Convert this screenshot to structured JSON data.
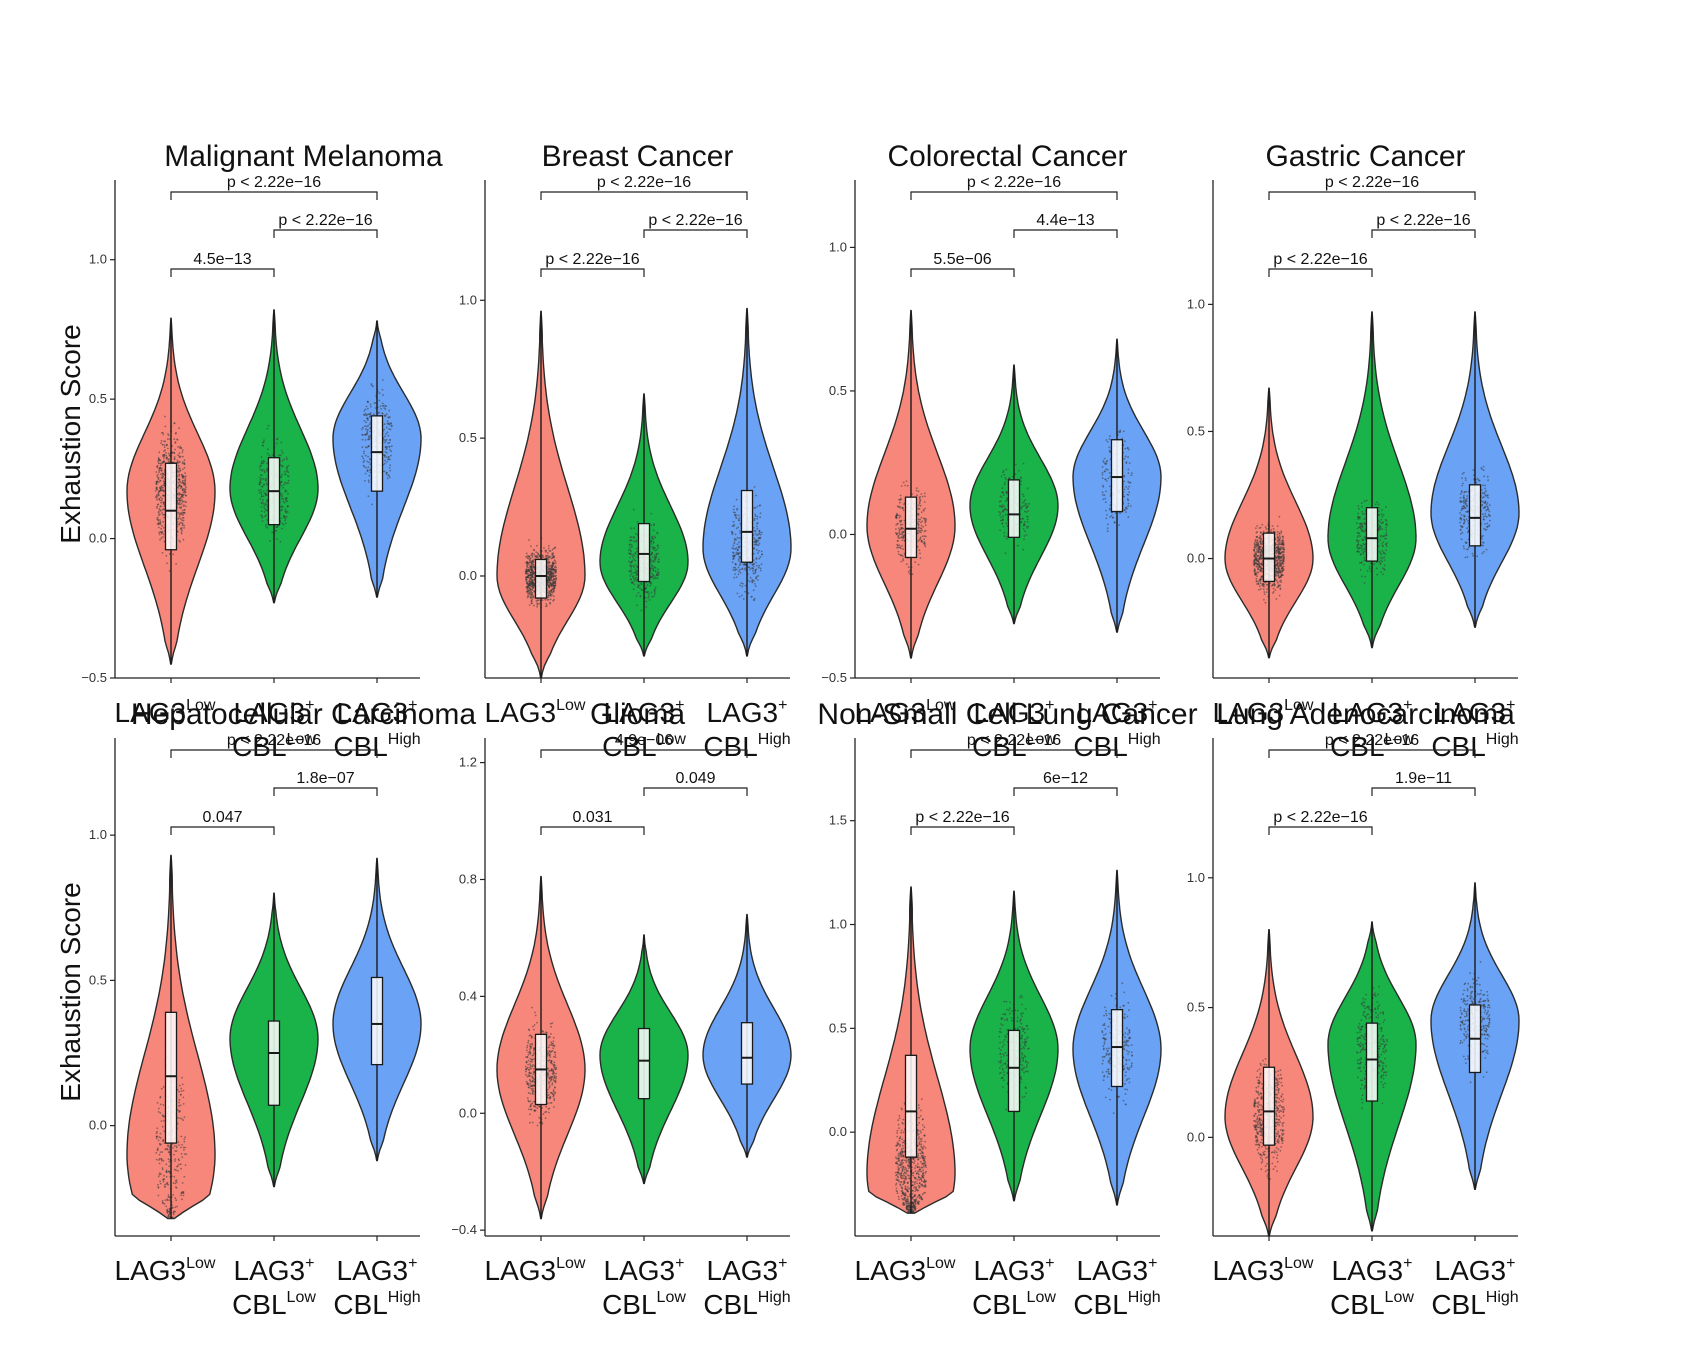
{
  "figure": {
    "ylabel": "Exhaustion Score",
    "groups": [
      {
        "line1": "LAG3",
        "sup1": "Low",
        "line2": "",
        "sup2": ""
      },
      {
        "line1": "LAG3",
        "sup1": "+",
        "line2": "CBL",
        "sup2": "Low"
      },
      {
        "line1": "LAG3",
        "sup1": "+",
        "line2": "CBL",
        "sup2": "High"
      }
    ],
    "colors": {
      "LAG3_low": "#F8877B",
      "CBL_low": "#19B34A",
      "CBL_high": "#6AA2F5"
    }
  },
  "chart_data": [
    {
      "type": "violin",
      "title": "Malignant Melanoma",
      "ylabel": "Exhaustion Score",
      "ylim": [
        -0.5,
        1.25
      ],
      "ticks": [
        -0.5,
        0.0,
        0.5,
        1.0
      ],
      "tick_labels": [
        "−0.5",
        "0.0",
        "0.5",
        "1.0"
      ],
      "categories": [
        "LAG3 Low",
        "LAG3+ CBL Low",
        "LAG3+ CBL High"
      ],
      "series": [
        {
          "name": "LAG3 Low",
          "min": -0.45,
          "q1": -0.04,
          "median": 0.1,
          "q3": 0.27,
          "max": 0.79,
          "mode": 0.17,
          "n": 650
        },
        {
          "name": "LAG3+ CBL Low",
          "min": -0.23,
          "q1": 0.05,
          "median": 0.17,
          "q3": 0.29,
          "max": 0.82,
          "mode": 0.18,
          "n": 300
        },
        {
          "name": "LAG3+ CBL High",
          "min": -0.21,
          "q1": 0.17,
          "median": 0.31,
          "q3": 0.44,
          "max": 0.78,
          "mode": 0.36,
          "n": 280
        }
      ],
      "comparisons": [
        {
          "pair": [
            0,
            1
          ],
          "label": "4.5e−13"
        },
        {
          "pair": [
            1,
            2
          ],
          "label": "p < 2.22e−16"
        },
        {
          "pair": [
            0,
            2
          ],
          "label": "p < 2.22e−16"
        }
      ]
    },
    {
      "type": "violin",
      "title": "Breast Cancer",
      "ylabel": "",
      "ylim": [
        -0.37,
        1.4
      ],
      "ticks": [
        0.0,
        0.5,
        1.0
      ],
      "tick_labels": [
        "0.0",
        "0.5",
        "1.0"
      ],
      "categories": [
        "LAG3 Low",
        "LAG3+ CBL Low",
        "LAG3+ CBL High"
      ],
      "series": [
        {
          "name": "LAG3 Low",
          "min": -0.37,
          "q1": -0.08,
          "median": 0.0,
          "q3": 0.06,
          "max": 0.96,
          "mode": 0.0,
          "n": 900
        },
        {
          "name": "LAG3+ CBL Low",
          "min": -0.29,
          "q1": -0.02,
          "median": 0.08,
          "q3": 0.19,
          "max": 0.66,
          "mode": 0.05,
          "n": 350
        },
        {
          "name": "LAG3+ CBL High",
          "min": -0.29,
          "q1": 0.05,
          "median": 0.16,
          "q3": 0.31,
          "max": 0.97,
          "mode": 0.1,
          "n": 320
        }
      ],
      "comparisons": [
        {
          "pair": [
            0,
            1
          ],
          "label": "p < 2.22e−16"
        },
        {
          "pair": [
            1,
            2
          ],
          "label": "p < 2.22e−16"
        },
        {
          "pair": [
            0,
            2
          ],
          "label": "p < 2.22e−16"
        }
      ]
    },
    {
      "type": "violin",
      "title": "Colorectal Cancer",
      "ylabel": "",
      "ylim": [
        -0.5,
        1.2
      ],
      "ticks": [
        -0.5,
        0.0,
        0.5,
        1.0
      ],
      "tick_labels": [
        "−0.5",
        "0.0",
        "0.5",
        "1.0"
      ],
      "categories": [
        "LAG3 Low",
        "LAG3+ CBL Low",
        "LAG3+ CBL High"
      ],
      "series": [
        {
          "name": "LAG3 Low",
          "min": -0.43,
          "q1": -0.08,
          "median": 0.02,
          "q3": 0.13,
          "max": 0.78,
          "mode": 0.03,
          "n": 320
        },
        {
          "name": "LAG3+ CBL Low",
          "min": -0.31,
          "q1": -0.01,
          "median": 0.07,
          "q3": 0.19,
          "max": 0.59,
          "mode": 0.1,
          "n": 200
        },
        {
          "name": "LAG3+ CBL High",
          "min": -0.34,
          "q1": 0.08,
          "median": 0.2,
          "q3": 0.33,
          "max": 0.68,
          "mode": 0.2,
          "n": 180
        }
      ],
      "comparisons": [
        {
          "pair": [
            0,
            1
          ],
          "label": "5.5e−06"
        },
        {
          "pair": [
            1,
            2
          ],
          "label": "4.4e−13"
        },
        {
          "pair": [
            0,
            2
          ],
          "label": "p < 2.22e−16"
        }
      ]
    },
    {
      "type": "violin",
      "title": "Gastric Cancer",
      "ylabel": "",
      "ylim": [
        -0.47,
        1.45
      ],
      "ticks": [
        0.0,
        0.5,
        1.0
      ],
      "tick_labels": [
        "0.0",
        "0.5",
        "1.0"
      ],
      "categories": [
        "LAG3 Low",
        "LAG3+ CBL Low",
        "LAG3+ CBL High"
      ],
      "series": [
        {
          "name": "LAG3 Low",
          "min": -0.39,
          "q1": -0.09,
          "median": 0.0,
          "q3": 0.1,
          "max": 0.67,
          "mode": 0.0,
          "n": 800
        },
        {
          "name": "LAG3+ CBL Low",
          "min": -0.35,
          "q1": -0.01,
          "median": 0.08,
          "q3": 0.2,
          "max": 0.97,
          "mode": 0.08,
          "n": 300
        },
        {
          "name": "LAG3+ CBL High",
          "min": -0.27,
          "q1": 0.05,
          "median": 0.16,
          "q3": 0.29,
          "max": 0.97,
          "mode": 0.18,
          "n": 280
        }
      ],
      "comparisons": [
        {
          "pair": [
            0,
            1
          ],
          "label": "p < 2.22e−16"
        },
        {
          "pair": [
            1,
            2
          ],
          "label": "p < 2.22e−16"
        },
        {
          "pair": [
            0,
            2
          ],
          "label": "p < 2.22e−16"
        }
      ]
    },
    {
      "type": "violin",
      "title": "Hepatocellular Carcinoma",
      "ylabel": "Exhaustion Score",
      "ylim": [
        -0.38,
        1.3
      ],
      "ticks": [
        0.0,
        0.5,
        1.0
      ],
      "tick_labels": [
        "0.0",
        "0.5",
        "1.0"
      ],
      "categories": [
        "LAG3 Low",
        "LAG3+ CBL Low",
        "LAG3+ CBL High"
      ],
      "series": [
        {
          "name": "LAG3 Low",
          "min": -0.32,
          "q1": -0.06,
          "median": 0.17,
          "q3": 0.39,
          "max": 0.93,
          "mode": -0.1,
          "n": 300
        },
        {
          "name": "LAG3+ CBL Low",
          "min": -0.21,
          "q1": 0.07,
          "median": 0.25,
          "q3": 0.36,
          "max": 0.8,
          "mode": 0.3,
          "n": 0
        },
        {
          "name": "LAG3+ CBL High",
          "min": -0.12,
          "q1": 0.21,
          "median": 0.35,
          "q3": 0.51,
          "max": 0.92,
          "mode": 0.35,
          "n": 0
        }
      ],
      "comparisons": [
        {
          "pair": [
            0,
            1
          ],
          "label": "0.047"
        },
        {
          "pair": [
            1,
            2
          ],
          "label": "1.8e−07"
        },
        {
          "pair": [
            0,
            2
          ],
          "label": "p < 2.22e−16"
        }
      ]
    },
    {
      "type": "violin",
      "title": "Glioma",
      "ylabel": "",
      "ylim": [
        -0.42,
        1.25
      ],
      "ticks": [
        -0.4,
        0.0,
        0.4,
        0.8,
        1.2
      ],
      "tick_labels": [
        "−0.4",
        "0.0",
        "0.4",
        "0.8",
        "1.2"
      ],
      "categories": [
        "LAG3 Low",
        "LAG3+ CBL Low",
        "LAG3+ CBL High"
      ],
      "series": [
        {
          "name": "LAG3 Low",
          "min": -0.36,
          "q1": 0.03,
          "median": 0.15,
          "q3": 0.27,
          "max": 0.81,
          "mode": 0.15,
          "n": 450
        },
        {
          "name": "LAG3+ CBL Low",
          "min": -0.24,
          "q1": 0.05,
          "median": 0.18,
          "q3": 0.29,
          "max": 0.61,
          "mode": 0.2,
          "n": 0
        },
        {
          "name": "LAG3+ CBL High",
          "min": -0.15,
          "q1": 0.1,
          "median": 0.19,
          "q3": 0.31,
          "max": 0.68,
          "mode": 0.2,
          "n": 0
        }
      ],
      "comparisons": [
        {
          "pair": [
            0,
            1
          ],
          "label": "0.031"
        },
        {
          "pair": [
            1,
            2
          ],
          "label": "0.049"
        },
        {
          "pair": [
            0,
            2
          ],
          "label": "4.9e−06"
        }
      ]
    },
    {
      "type": "violin",
      "title": "Non-Small Cell Lung Cancer",
      "ylabel": "",
      "ylim": [
        -0.5,
        1.85
      ],
      "ticks": [
        0.0,
        0.5,
        1.0,
        1.5
      ],
      "tick_labels": [
        "0.0",
        "0.5",
        "1.0",
        "1.5"
      ],
      "categories": [
        "LAG3 Low",
        "LAG3+ CBL Low",
        "LAG3+ CBL High"
      ],
      "series": [
        {
          "name": "LAG3 Low",
          "min": -0.39,
          "q1": -0.12,
          "median": 0.1,
          "q3": 0.37,
          "max": 1.18,
          "mode": -0.2,
          "n": 700
        },
        {
          "name": "LAG3+ CBL Low",
          "min": -0.33,
          "q1": 0.1,
          "median": 0.31,
          "q3": 0.49,
          "max": 1.16,
          "mode": 0.4,
          "n": 260
        },
        {
          "name": "LAG3+ CBL High",
          "min": -0.35,
          "q1": 0.22,
          "median": 0.41,
          "q3": 0.59,
          "max": 1.26,
          "mode": 0.4,
          "n": 240
        }
      ],
      "comparisons": [
        {
          "pair": [
            0,
            1
          ],
          "label": "p < 2.22e−16"
        },
        {
          "pair": [
            1,
            2
          ],
          "label": "6e−12"
        },
        {
          "pair": [
            0,
            2
          ],
          "label": "p < 2.22e−16"
        }
      ]
    },
    {
      "type": "violin",
      "title": "Lung Adenocarcinoma",
      "ylabel": "",
      "ylim": [
        -0.38,
        1.5
      ],
      "ticks": [
        0.0,
        0.5,
        1.0
      ],
      "tick_labels": [
        "0.0",
        "0.5",
        "1.0"
      ],
      "categories": [
        "LAG3 Low",
        "LAG3+ CBL Low",
        "LAG3+ CBL High"
      ],
      "series": [
        {
          "name": "LAG3 Low",
          "min": -0.38,
          "q1": -0.03,
          "median": 0.1,
          "q3": 0.27,
          "max": 0.8,
          "mode": 0.08,
          "n": 500
        },
        {
          "name": "LAG3+ CBL Low",
          "min": -0.36,
          "q1": 0.14,
          "median": 0.3,
          "q3": 0.44,
          "max": 0.83,
          "mode": 0.36,
          "n": 300
        },
        {
          "name": "LAG3+ CBL High",
          "min": -0.2,
          "q1": 0.25,
          "median": 0.38,
          "q3": 0.51,
          "max": 0.98,
          "mode": 0.45,
          "n": 280
        }
      ],
      "comparisons": [
        {
          "pair": [
            0,
            1
          ],
          "label": "p < 2.22e−16"
        },
        {
          "pair": [
            1,
            2
          ],
          "label": "1.9e−11"
        },
        {
          "pair": [
            0,
            2
          ],
          "label": "p < 2.22e−16"
        }
      ]
    }
  ]
}
